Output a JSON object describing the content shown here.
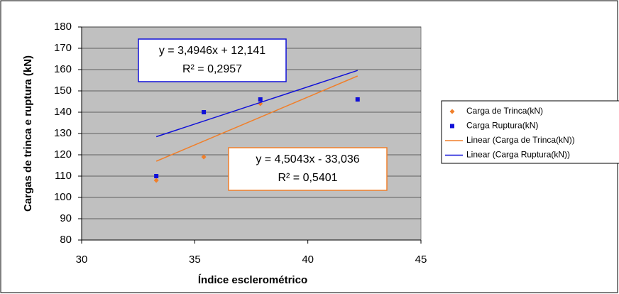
{
  "chart_data": {
    "type": "scatter",
    "xlabel": "Índice esclerométrico",
    "ylabel": "Cargas de trinca e ruptura (kN)",
    "xlim": [
      30,
      45
    ],
    "xticks": [
      30,
      35,
      40,
      45
    ],
    "ylim": [
      80,
      180
    ],
    "yticks": [
      80,
      90,
      100,
      110,
      120,
      130,
      140,
      150,
      160,
      170,
      180
    ],
    "grid": true,
    "legend": "right",
    "series": [
      {
        "name": "Carga de Trinca(kN)",
        "color": "#f07f2a",
        "marker": "diamond",
        "x": [
          33.3,
          35.4,
          37.9,
          42.2
        ],
        "values": [
          108,
          119,
          144,
          146
        ]
      },
      {
        "name": "Carga Ruptura(kN)",
        "color": "#1010d8",
        "marker": "square",
        "x": [
          33.3,
          35.4,
          37.9,
          42.2
        ],
        "values": [
          110,
          140,
          146,
          146
        ]
      },
      {
        "name": "Linear (Carga de Trinca(kN))",
        "color": "#f07f2a",
        "marker": "line",
        "x": [
          33.3,
          42.2
        ],
        "values": [
          117,
          157
        ]
      },
      {
        "name": "Linear (Carga Ruptura(kN))",
        "color": "#1010d8",
        "marker": "line",
        "x": [
          33.3,
          42.2
        ],
        "values": [
          128.5,
          159.6
        ]
      }
    ],
    "annotations": [
      {
        "equation": "y = 3,4946x + 12,141",
        "r2": "R² = 0,2957",
        "color": "#1010d8"
      },
      {
        "equation": "y = 4,5043x - 33,036",
        "r2": "R² = 0,5401",
        "color": "#f07f2a"
      }
    ]
  }
}
